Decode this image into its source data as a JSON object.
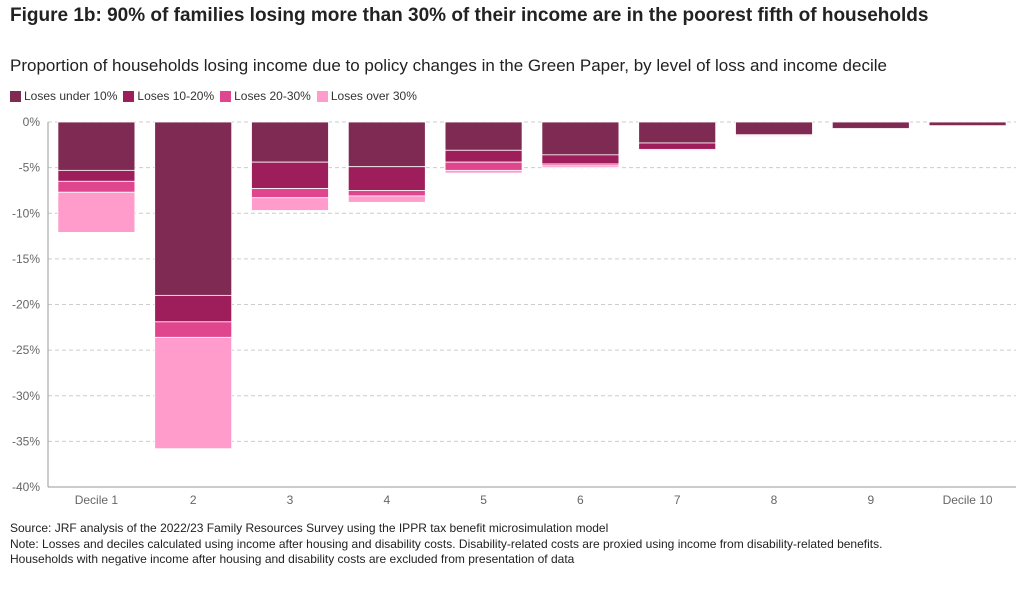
{
  "chart_title": "Figure 1b: 90% of families losing more than 30% of their income are in the poorest fifth of households",
  "chart_subtitle": "Proportion of households losing income due to policy changes in the Green Paper, by level of loss and income decile",
  "footer": {
    "source": "Source: JRF analysis of the 2022/23 Family Resources Survey using the IPPR tax benefit microsimulation model",
    "note1": "Note: Losses and deciles calculated using income after housing and disability costs. Disability-related costs are proxied using income from disability-related benefits.",
    "note2": "Households with negative income after housing and disability costs are excluded from presentation of data"
  },
  "chart_data": {
    "type": "bar",
    "stacked": true,
    "title": "Figure 1b: 90% of families losing more than 30% of their income are in the poorest fifth of households",
    "subtitle": "Proportion of households losing income due to policy changes in the Green Paper, by level of loss and income decile",
    "categories": [
      "Decile 1",
      "2",
      "3",
      "4",
      "5",
      "6",
      "7",
      "8",
      "9",
      "Decile 10"
    ],
    "ylim": [
      -40,
      0
    ],
    "yticks": [
      0,
      -5,
      -10,
      -15,
      -20,
      -25,
      -30,
      -35,
      -40
    ],
    "ytick_labels": [
      "0%",
      "-5%",
      "-10%",
      "-15%",
      "-20%",
      "-25%",
      "-30%",
      "-35%",
      "-40%"
    ],
    "legend_position": "top-left",
    "series": [
      {
        "name": "Loses under 10%",
        "color": "#7f2a52",
        "values": [
          -5.3,
          -19.0,
          -4.4,
          -4.9,
          -3.1,
          -3.6,
          -2.3,
          -1.4,
          -0.7,
          -0.4
        ]
      },
      {
        "name": "Loses 10-20%",
        "color": "#9e1e5c",
        "values": [
          -1.2,
          -2.9,
          -2.9,
          -2.6,
          -1.3,
          -1.0,
          -0.7,
          -0.1,
          -0.1,
          0.0
        ]
      },
      {
        "name": "Loses 20-30%",
        "color": "#e0468e",
        "values": [
          -1.2,
          -1.7,
          -1.0,
          -0.6,
          -0.9,
          -0.2,
          -0.1,
          0.0,
          0.0,
          0.0
        ]
      },
      {
        "name": "Loses over 30%",
        "color": "#ff9ccb",
        "values": [
          -4.4,
          -12.2,
          -1.4,
          -0.7,
          -0.3,
          -0.2,
          -0.1,
          -0.1,
          0.0,
          0.0
        ]
      }
    ]
  }
}
